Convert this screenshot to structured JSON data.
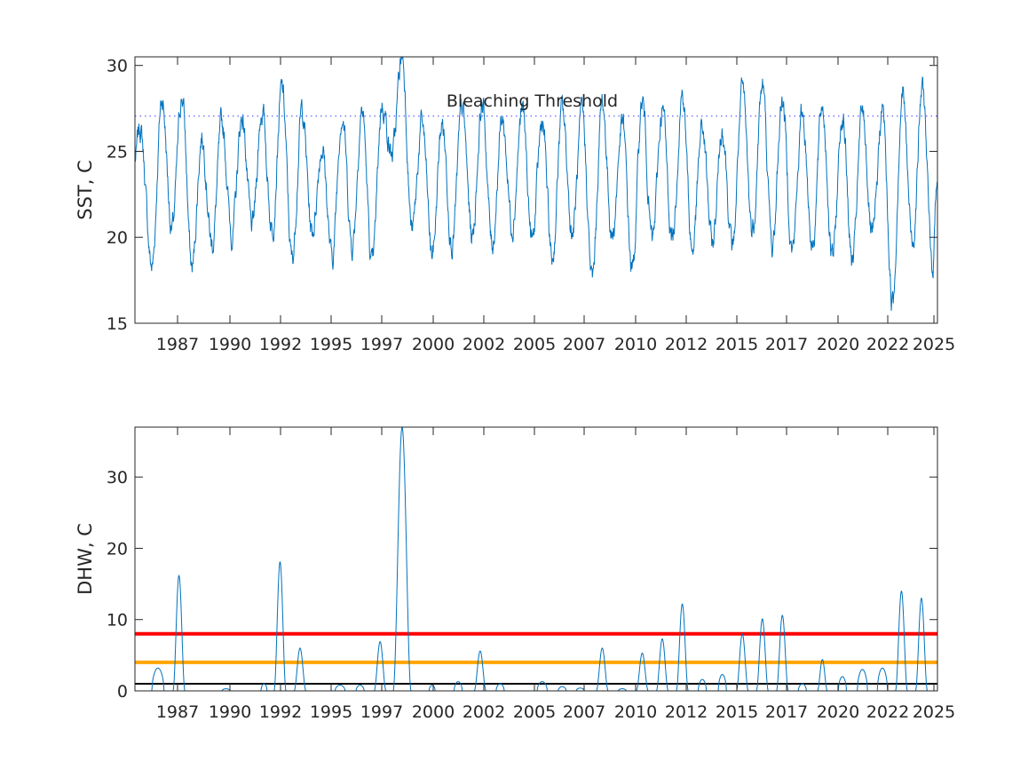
{
  "chart_data": [
    {
      "type": "line",
      "ylabel": "SST, C",
      "ylim": [
        15,
        30.5
      ],
      "yticks": [
        15,
        20,
        25,
        30
      ],
      "xticks": [
        1987,
        1990,
        1992,
        1995,
        1997,
        2000,
        2002,
        2005,
        2007,
        2010,
        2012,
        2015,
        2017,
        2020,
        2022,
        2025
      ],
      "grid": false,
      "series_color": "#0072bd",
      "seasonal_peaks": [
        {
          "year": 1985.1,
          "value": 26.4
        },
        {
          "year": 1986.2,
          "value": 28.1
        },
        {
          "year": 1987.2,
          "value": 28.2
        },
        {
          "year": 1988.2,
          "value": 25.9
        },
        {
          "year": 1989.2,
          "value": 26.5
        },
        {
          "year": 1990.2,
          "value": 27.0
        },
        {
          "year": 1991.2,
          "value": 27.4
        },
        {
          "year": 1992.2,
          "value": 28.6
        },
        {
          "year": 1993.2,
          "value": 27.4
        },
        {
          "year": 1994.2,
          "value": 25.3
        },
        {
          "year": 1995.2,
          "value": 27.3
        },
        {
          "year": 1996.2,
          "value": 27.4
        },
        {
          "year": 1997.2,
          "value": 27.8
        },
        {
          "year": 1998.2,
          "value": 30.6
        },
        {
          "year": 1999.2,
          "value": 26.6
        },
        {
          "year": 2000.2,
          "value": 26.6
        },
        {
          "year": 2001.2,
          "value": 27.4
        },
        {
          "year": 2002.2,
          "value": 27.8
        },
        {
          "year": 2003.2,
          "value": 26.9
        },
        {
          "year": 2004.2,
          "value": 27.4
        },
        {
          "year": 2005.2,
          "value": 26.7
        },
        {
          "year": 2006.2,
          "value": 27.4
        },
        {
          "year": 2007.2,
          "value": 27.0
        },
        {
          "year": 2008.2,
          "value": 27.8
        },
        {
          "year": 2009.2,
          "value": 26.6
        },
        {
          "year": 2010.2,
          "value": 27.9
        },
        {
          "year": 2011.2,
          "value": 27.4
        },
        {
          "year": 2012.2,
          "value": 28.4
        },
        {
          "year": 2013.2,
          "value": 26.3
        },
        {
          "year": 2014.2,
          "value": 26.4
        },
        {
          "year": 2015.2,
          "value": 28.4
        },
        {
          "year": 2016.2,
          "value": 28.8
        },
        {
          "year": 2017.2,
          "value": 28.1
        },
        {
          "year": 2018.2,
          "value": 27.2
        },
        {
          "year": 2019.2,
          "value": 27.6
        },
        {
          "year": 2020.2,
          "value": 27.1
        },
        {
          "year": 2021.2,
          "value": 27.3
        },
        {
          "year": 2022.2,
          "value": 27.4
        },
        {
          "year": 2023.2,
          "value": 28.4
        },
        {
          "year": 2024.2,
          "value": 28.7
        }
      ],
      "seasonal_troughs": [
        {
          "year": 1985.7,
          "value": 18.3
        },
        {
          "year": 1986.7,
          "value": 20.5
        },
        {
          "year": 1987.7,
          "value": 18.2
        },
        {
          "year": 1988.7,
          "value": 19.6
        },
        {
          "year": 1989.7,
          "value": 20.2
        },
        {
          "year": 1990.7,
          "value": 20.5
        },
        {
          "year": 1991.7,
          "value": 20.6
        },
        {
          "year": 1992.7,
          "value": 18.7
        },
        {
          "year": 1993.7,
          "value": 20.3
        },
        {
          "year": 1994.7,
          "value": 18.8
        },
        {
          "year": 1995.7,
          "value": 19.6
        },
        {
          "year": 1996.7,
          "value": 18.3
        },
        {
          "year": 1997.7,
          "value": 24.8
        },
        {
          "year": 1998.7,
          "value": 20.4
        },
        {
          "year": 1999.7,
          "value": 19.0
        },
        {
          "year": 2000.7,
          "value": 19.8
        },
        {
          "year": 2001.7,
          "value": 20.1
        },
        {
          "year": 2002.7,
          "value": 19.6
        },
        {
          "year": 2003.7,
          "value": 20.8
        },
        {
          "year": 2004.7,
          "value": 19.8
        },
        {
          "year": 2005.7,
          "value": 18.7
        },
        {
          "year": 2006.7,
          "value": 20.3
        },
        {
          "year": 2007.7,
          "value": 17.5
        },
        {
          "year": 2008.7,
          "value": 20.1
        },
        {
          "year": 2009.7,
          "value": 18.1
        },
        {
          "year": 2010.7,
          "value": 19.8
        },
        {
          "year": 2011.7,
          "value": 20.0
        },
        {
          "year": 2012.7,
          "value": 19.3
        },
        {
          "year": 2013.7,
          "value": 19.6
        },
        {
          "year": 2014.7,
          "value": 19.4
        },
        {
          "year": 2015.7,
          "value": 20.4
        },
        {
          "year": 2016.7,
          "value": 19.4
        },
        {
          "year": 2017.7,
          "value": 19.3
        },
        {
          "year": 2018.7,
          "value": 19.7
        },
        {
          "year": 2019.7,
          "value": 18.8
        },
        {
          "year": 2020.7,
          "value": 18.5
        },
        {
          "year": 2021.7,
          "value": 19.8
        },
        {
          "year": 2022.7,
          "value": 16.2
        },
        {
          "year": 2023.7,
          "value": 19.8
        },
        {
          "year": 2024.7,
          "value": 18.2
        }
      ],
      "xrange": [
        1984.85,
        2024.95
      ],
      "annotations": [
        {
          "text": "Bleaching Threshold",
          "x": 2004.7,
          "y": 27.6
        }
      ],
      "reference_lines": [
        {
          "y": 27.05,
          "style": "dotted",
          "color": "#6464ff"
        }
      ]
    },
    {
      "type": "line",
      "ylabel": "DHW, C",
      "ylim": [
        0,
        37
      ],
      "yticks": [
        0,
        10,
        20,
        30
      ],
      "xticks": [
        1987,
        1990,
        1992,
        1995,
        1997,
        2000,
        2002,
        2005,
        2007,
        2010,
        2012,
        2015,
        2017,
        2020,
        2022,
        2025
      ],
      "grid": false,
      "xrange": [
        1984.85,
        2024.95
      ],
      "series_color": "#0072bd",
      "events": [
        {
          "year": 1986.0,
          "peak": 3.2,
          "width": 0.3
        },
        {
          "year": 1987.05,
          "peak": 16.2,
          "width": 0.3
        },
        {
          "year": 1989.4,
          "peak": 0.3,
          "width": 0.2
        },
        {
          "year": 1991.3,
          "peak": 1.0,
          "width": 0.15
        },
        {
          "year": 1992.1,
          "peak": 18.1,
          "width": 0.3
        },
        {
          "year": 1993.1,
          "peak": 6.0,
          "width": 0.3
        },
        {
          "year": 1995.1,
          "peak": 0.8,
          "width": 0.25
        },
        {
          "year": 1996.1,
          "peak": 0.8,
          "width": 0.2
        },
        {
          "year": 1997.1,
          "peak": 6.9,
          "width": 0.3
        },
        {
          "year": 1998.2,
          "peak": 37.0,
          "width": 0.45
        },
        {
          "year": 1999.7,
          "peak": 0.8,
          "width": 0.15
        },
        {
          "year": 2001.0,
          "peak": 1.3,
          "width": 0.2
        },
        {
          "year": 2002.1,
          "peak": 5.6,
          "width": 0.3
        },
        {
          "year": 2003.1,
          "peak": 1.0,
          "width": 0.2
        },
        {
          "year": 2005.2,
          "peak": 1.3,
          "width": 0.25
        },
        {
          "year": 2006.2,
          "peak": 0.6,
          "width": 0.2
        },
        {
          "year": 2007.1,
          "peak": 0.4,
          "width": 0.2
        },
        {
          "year": 2008.2,
          "peak": 6.0,
          "width": 0.3
        },
        {
          "year": 2009.2,
          "peak": 0.3,
          "width": 0.2
        },
        {
          "year": 2010.2,
          "peak": 5.3,
          "width": 0.3
        },
        {
          "year": 2011.2,
          "peak": 7.3,
          "width": 0.3
        },
        {
          "year": 2012.2,
          "peak": 12.2,
          "width": 0.3
        },
        {
          "year": 2013.2,
          "peak": 1.6,
          "width": 0.2
        },
        {
          "year": 2014.2,
          "peak": 2.3,
          "width": 0.2
        },
        {
          "year": 2015.2,
          "peak": 8.0,
          "width": 0.3
        },
        {
          "year": 2016.2,
          "peak": 10.1,
          "width": 0.3
        },
        {
          "year": 2017.2,
          "peak": 10.6,
          "width": 0.3
        },
        {
          "year": 2018.2,
          "peak": 1.0,
          "width": 0.2
        },
        {
          "year": 2019.2,
          "peak": 4.4,
          "width": 0.25
        },
        {
          "year": 2020.2,
          "peak": 2.0,
          "width": 0.2
        },
        {
          "year": 2021.2,
          "peak": 3.0,
          "width": 0.25
        },
        {
          "year": 2022.2,
          "peak": 3.2,
          "width": 0.25
        },
        {
          "year": 2023.15,
          "peak": 14.0,
          "width": 0.3
        },
        {
          "year": 2024.15,
          "peak": 13.0,
          "width": 0.3
        }
      ],
      "reference_lines": [
        {
          "y": 8,
          "color": "#ff0000"
        },
        {
          "y": 4,
          "color": "#ffa500"
        },
        {
          "y": 1,
          "color": "#000000"
        }
      ]
    }
  ]
}
